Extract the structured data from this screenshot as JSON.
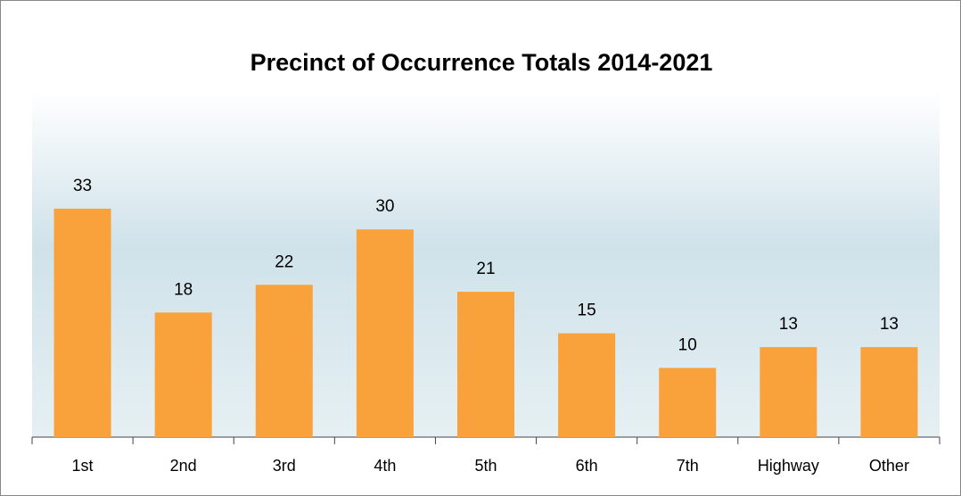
{
  "chart_data": {
    "type": "bar",
    "title": "Precinct of Occurrence Totals 2014-2021",
    "categories": [
      "1st",
      "2nd",
      "3rd",
      "4th",
      "5th",
      "6th",
      "7th",
      "Highway",
      "Other"
    ],
    "values": [
      33,
      18,
      22,
      30,
      21,
      15,
      10,
      13,
      13
    ],
    "color": "#f9a23c",
    "ylim": [
      0,
      50
    ]
  }
}
